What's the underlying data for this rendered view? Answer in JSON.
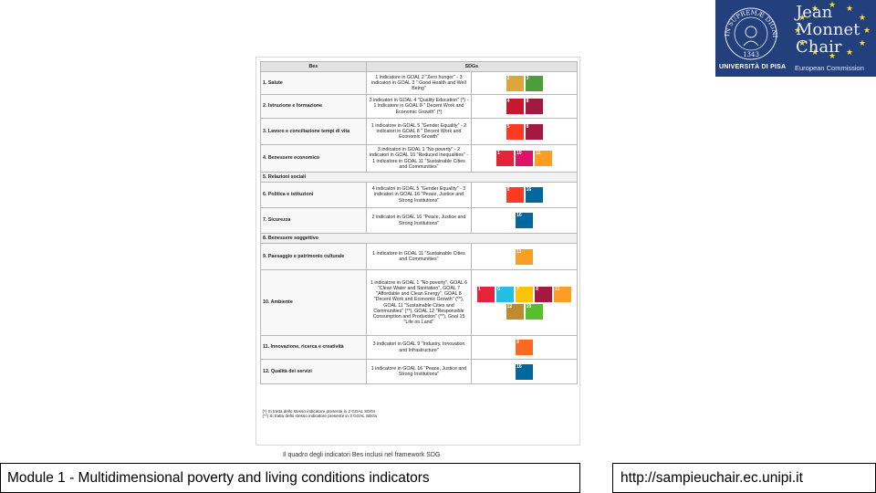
{
  "table": {
    "header_bes": "Bes",
    "header_sdgs": "SDGs",
    "rows": [
      {
        "bes": "1. Salute",
        "sdg": "1 indicatore in GOAL 2 \"Zero hunger\" - 3 indicatori in GOAL 3 \" Good Health and Well Being\"",
        "tiles": [
          {
            "n": "2",
            "label": "ZERO HUNGER",
            "color": "#DDA63A"
          },
          {
            "n": "3",
            "label": "GOOD HEALTH",
            "color": "#4C9F38"
          }
        ]
      },
      {
        "bes": "2. Istruzione e formazione",
        "sdg": "3 indicatori in GOAL 4 \"Quality Education\" (*) - 1 indicatore in GOAL 8 \" Decent Work and Economic Growth\" (*)",
        "tiles": [
          {
            "n": "4",
            "label": "QUALITY EDUCATION",
            "color": "#C5192D"
          },
          {
            "n": "8",
            "label": "DECENT WORK",
            "color": "#A21942"
          }
        ]
      },
      {
        "bes": "3. Lavoro e conciliazione tempi di vita",
        "sdg": "1 indicatore in GOAL 5 \"Gender Equality\" - 2 indicatori in GOAL 8 \" Decent Work and Economic Growth\"",
        "tiles": [
          {
            "n": "5",
            "label": "GENDER EQUALITY",
            "color": "#FF3A21"
          },
          {
            "n": "8",
            "label": "DECENT WORK",
            "color": "#A21942"
          }
        ]
      },
      {
        "bes": "4. Benessere economico",
        "sdg": "3 indicatori in GOAL 1 \"No poverty\" - 2 indicatori in GOAL 10 \"Reduced Inequalities\" - 1 indicatore in GOAL 11 \"Sustainable Cities and Communities\"",
        "tiles": [
          {
            "n": "1",
            "label": "NO POVERTY",
            "color": "#E5243B"
          },
          {
            "n": "10",
            "label": "REDUCED INEQUALITIES",
            "color": "#DD1367"
          },
          {
            "n": "11",
            "label": "SUSTAINABLE CITIES",
            "color": "#FD9D24"
          }
        ]
      },
      {
        "bes": "5. Relazioni sociali",
        "sdg": "",
        "tiles": []
      },
      {
        "bes": "6. Politica e istituzioni",
        "sdg": "4 indicatori in GOAL 5 \"Gender Equality\" - 3 indicatori in GOAL 16 \"Peace, Justice and Strong Institutions\"",
        "tiles": [
          {
            "n": "5",
            "label": "GENDER EQUALITY",
            "color": "#FF3A21"
          },
          {
            "n": "16",
            "label": "PEACE JUSTICE",
            "color": "#00689D"
          }
        ]
      },
      {
        "bes": "7. Sicurezza",
        "sdg": "2 indicatori in GOAL 16 \"Peace, Justice and Strong Institutions\"",
        "tiles": [
          {
            "n": "16",
            "label": "PEACE JUSTICE",
            "color": "#00689D"
          }
        ]
      },
      {
        "bes": "8. Benessere soggettivo",
        "sdg": "",
        "tiles": []
      },
      {
        "bes": "9. Paesaggio e patrimonio culturale",
        "sdg": "1 indicatore in GOAL 11 \"Sustainable Cities and Communities\"",
        "tiles": [
          {
            "n": "11",
            "label": "SUSTAINABLE CITIES",
            "color": "#FD9D24"
          }
        ]
      },
      {
        "bes": "10. Ambiente",
        "sdg": "1 indicatore in GOAL 1 \"No poverty\", GOAL 6 \"Clean Water and Sanitation\", GOAL 7 \"Affordable and Clean Energy\", GOAL 8 \"Decent Work and Economic Growth\" (**), GOAL 11 \"Sustainable Cities and Communities\" (**), GOAL 12 \"Responsible Consumption and Production\" (**), Goal 15 \"Life on Land\"",
        "tiles": [
          {
            "n": "1",
            "label": "NO POVERTY",
            "color": "#E5243B"
          },
          {
            "n": "6",
            "label": "CLEAN WATER",
            "color": "#26BDE2"
          },
          {
            "n": "7",
            "label": "CLEAN ENERGY",
            "color": "#FCC30B"
          },
          {
            "n": "8",
            "label": "DECENT WORK",
            "color": "#A21942"
          },
          {
            "n": "11",
            "label": "SUSTAINABLE CITIES",
            "color": "#FD9D24"
          },
          {
            "n": "12",
            "label": "RESPONSIBLE CONSUMPTION",
            "color": "#BF8B2E"
          },
          {
            "n": "15",
            "label": "LIFE ON LAND",
            "color": "#56C02B"
          }
        ]
      },
      {
        "bes": "11. Innovazione, ricerca e creatività",
        "sdg": "3 indicatori in GOAL 9 \"Industry, Innovation and Infrastructure\"",
        "tiles": [
          {
            "n": "9",
            "label": "INDUSTRY INNOVATION",
            "color": "#FD6925"
          }
        ]
      },
      {
        "bes": "12. Qualità dei servizi",
        "sdg": "1 indicatore in GOAL 16 \"Peace, Justice and Strong Institutions\"",
        "tiles": [
          {
            "n": "16",
            "label": "PEACE JUSTICE",
            "color": "#00689D"
          }
        ]
      }
    ],
    "notes": [
      "(*) Si tratta dello stesso indicatore presente in 2 GOAL SDGs",
      "(**) Si tratta dello stesso indicatore presente in 3 GOAL SDGs"
    ]
  },
  "caption": "Il quadro degli indicatori Bes inclusi nel framework SDG",
  "logo": {
    "line1": "Jean",
    "line2": "Monnet",
    "line3": "Chair",
    "university": "UNIVERSITÀ DI PISA",
    "commission": "European Commission",
    "seal_text": "IN SUPREMÆ DIGNITATIS",
    "seal_year": "1343",
    "bg_color": "#24407c",
    "star_color": "#f5d64e"
  },
  "footer": {
    "module_title": "Module 1 - Multidimensional poverty and living conditions indicators",
    "url": "http://sampieuchair.ec.unipi.it"
  }
}
